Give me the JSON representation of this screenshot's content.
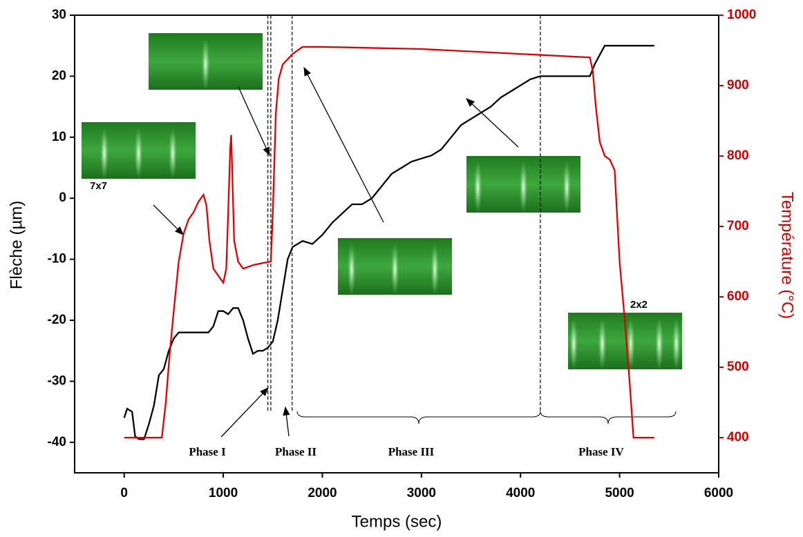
{
  "chart_data": {
    "type": "line",
    "xlabel": "Temps (sec)",
    "ylabel": "Flèche (µm)",
    "y2label": "Température (°C)",
    "xlim": [
      -500,
      6000
    ],
    "ylim": [
      -45,
      30
    ],
    "y2lim": [
      350,
      1000
    ],
    "xticks": [
      0,
      1000,
      2000,
      3000,
      4000,
      5000,
      6000
    ],
    "yticks": [
      -40,
      -30,
      -20,
      -10,
      0,
      10,
      20,
      30
    ],
    "y2ticks": [
      400,
      500,
      600,
      700,
      800,
      900,
      1000
    ],
    "y2color": "#cc0000",
    "series": [
      {
        "color": "#000000",
        "x": [
          0,
          30,
          80,
          110,
          150,
          200,
          250,
          300,
          350,
          400,
          450,
          500,
          550,
          700,
          850,
          900,
          950,
          1000,
          1050,
          1100,
          1150,
          1200,
          1250,
          1300,
          1350,
          1400,
          1450,
          1500,
          1550,
          1600,
          1650,
          1700,
          1800,
          1900,
          2000,
          2100,
          2200,
          2300,
          2400,
          2500,
          2600,
          2700,
          2800,
          2900,
          3000,
          3100,
          3200,
          3300,
          3400,
          3500,
          3600,
          3700,
          3800,
          3900,
          4000,
          4100,
          4200,
          4400,
          4700,
          4750,
          4850,
          5000,
          5350
        ],
        "values": [
          -36,
          -34.5,
          -35,
          -39,
          -39.5,
          -39.5,
          -37,
          -34,
          -29,
          -28,
          -25,
          -23,
          -22,
          -22,
          -22,
          -21,
          -18.5,
          -18.5,
          -19,
          -18,
          -18,
          -20,
          -23,
          -25.5,
          -25,
          -25,
          -24.5,
          -23.5,
          -20,
          -15,
          -10,
          -8,
          -7,
          -7.5,
          -6,
          -4,
          -2.5,
          -1,
          -1,
          0,
          2,
          4,
          5,
          6,
          6.5,
          7,
          8,
          10,
          12,
          13,
          14,
          15,
          16.5,
          17.5,
          18.5,
          19.5,
          20,
          20,
          20,
          22,
          25,
          25,
          25
        ]
      },
      {
        "color": "#e00000",
        "axis": "y2",
        "x": [
          0,
          200,
          380,
          420,
          460,
          500,
          550,
          600,
          650,
          700,
          750,
          800,
          830,
          860,
          900,
          950,
          1000,
          1030,
          1050,
          1070,
          1080,
          1090,
          1110,
          1150,
          1200,
          1300,
          1400,
          1480,
          1500,
          1530,
          1560,
          1600,
          1700,
          1800,
          2000,
          3000,
          4000,
          4700,
          4730,
          4760,
          4800,
          4850,
          4900,
          4950,
          5000,
          5050,
          5100,
          5140,
          5350
        ],
        "values": [
          400,
          400,
          400,
          450,
          520,
          580,
          650,
          690,
          710,
          720,
          735,
          745,
          730,
          680,
          640,
          630,
          620,
          640,
          720,
          810,
          830,
          780,
          680,
          650,
          640,
          645,
          648,
          650,
          720,
          860,
          910,
          930,
          945,
          955,
          955,
          952,
          945,
          940,
          920,
          870,
          820,
          800,
          795,
          780,
          650,
          570,
          480,
          400,
          400
        ]
      }
    ],
    "phase_lines": [
      1450,
      1480,
      1695,
      4200
    ],
    "phases": [
      "Phase I",
      "Phase II",
      "Phase III",
      "Phase IV"
    ],
    "insets": [
      "7x7",
      "2x2"
    ]
  }
}
